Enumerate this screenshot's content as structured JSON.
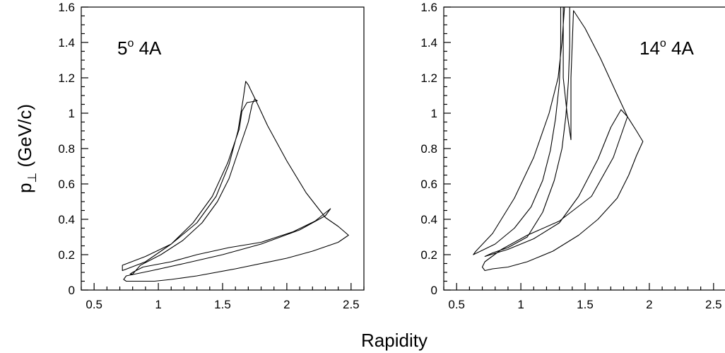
{
  "figure": {
    "ylabel_main": "p",
    "ylabel_sub": "⊥",
    "ylabel_rest": " (GeV/c)",
    "xlabel": "Rapidity"
  },
  "chart_data": [
    {
      "type": "line",
      "label_main": "5",
      "label_sup": "o",
      "label_rest": " 4A",
      "xlabel": "Rapidity",
      "ylabel": "p⊥ (GeV/c)",
      "xlim": [
        0.4,
        2.6
      ],
      "ylim": [
        0,
        1.6
      ],
      "xticks": [
        0.5,
        1,
        1.5,
        2,
        2.5
      ],
      "xtick_labels": [
        "0.5",
        "1",
        "1.5",
        "2",
        "2.5"
      ],
      "yticks": [
        0,
        0.2,
        0.4,
        0.6,
        0.8,
        1,
        1.2,
        1.4,
        1.6
      ],
      "ytick_labels": [
        "0",
        "0.2",
        "0.4",
        "0.6",
        "0.8",
        "1",
        "1.2",
        "1.4",
        "1.6"
      ],
      "grid": false,
      "series": [
        {
          "x": [
            0.72,
            0.72,
            0.9,
            1.1,
            1.3,
            1.45,
            1.55,
            1.62,
            1.66,
            1.68,
            1.7,
            1.72,
            1.76,
            1.85,
            2.0,
            2.15,
            2.3,
            2.4,
            2.48,
            2.4,
            2.2,
            2.0,
            1.6,
            1.3,
            1.1,
            0.97,
            0.92,
            0.82,
            0.75,
            0.73,
            0.75,
            0.95,
            1.2,
            1.5,
            1.8,
            2.1,
            2.3,
            2.34,
            2.22,
            2.05,
            1.8,
            1.55,
            1.3,
            1.1,
            0.88,
            0.8,
            0.78,
            0.8,
            0.86,
            1.02,
            1.19,
            1.34,
            1.46,
            1.55,
            1.62,
            1.7,
            1.73,
            1.75,
            1.77,
            1.69,
            1.65,
            1.63,
            1.54,
            1.42,
            1.27,
            1.1,
            0.9,
            0.72
          ],
          "y": [
            0.11,
            0.14,
            0.19,
            0.26,
            0.38,
            0.53,
            0.71,
            0.9,
            1.08,
            1.18,
            1.16,
            1.13,
            1.07,
            0.93,
            0.73,
            0.55,
            0.41,
            0.36,
            0.31,
            0.27,
            0.22,
            0.18,
            0.12,
            0.08,
            0.06,
            0.05,
            0.05,
            0.05,
            0.05,
            0.06,
            0.08,
            0.11,
            0.15,
            0.2,
            0.26,
            0.34,
            0.42,
            0.46,
            0.39,
            0.33,
            0.27,
            0.24,
            0.2,
            0.16,
            0.13,
            0.1,
            0.09,
            0.09,
            0.14,
            0.2,
            0.28,
            0.38,
            0.5,
            0.63,
            0.78,
            0.95,
            1.05,
            1.08,
            1.07,
            1.06,
            1.01,
            0.91,
            0.72,
            0.53,
            0.38,
            0.26,
            0.16,
            0.11
          ]
        }
      ]
    },
    {
      "type": "line",
      "label_main": "14",
      "label_sup": "o",
      "label_rest": " 4A",
      "xlabel": "Rapidity",
      "ylabel": "p⊥ (GeV/c)",
      "xlim": [
        0.4,
        2.6
      ],
      "ylim": [
        0,
        1.6
      ],
      "xticks": [
        0.5,
        1,
        1.5,
        2,
        2.5
      ],
      "xtick_labels": [
        "0.5",
        "1",
        "1.5",
        "2",
        "2.5"
      ],
      "yticks": [
        0,
        0.2,
        0.4,
        0.6,
        0.8,
        1,
        1.2,
        1.4,
        1.6
      ],
      "ytick_labels": [
        "0",
        "0.2",
        "0.4",
        "0.6",
        "0.8",
        "1",
        "1.2",
        "1.4",
        "1.6"
      ],
      "grid": false,
      "series": [
        {
          "x": [
            0.63,
            0.8,
            0.95,
            1.08,
            1.17,
            1.23,
            1.27,
            1.3,
            1.31,
            1.31,
            1.33,
            1.33,
            1.33,
            1.36,
            1.39,
            1.39,
            1.41,
            1.5,
            1.62,
            1.74,
            1.83,
            1.9,
            1.95,
            1.9,
            1.84,
            1.75,
            1.6,
            1.45,
            1.25,
            1.05,
            0.9,
            0.78,
            0.72,
            0.7,
            0.72,
            0.85,
            1.05,
            1.3,
            1.55,
            1.72,
            1.83,
            1.78,
            1.7,
            1.6,
            1.45,
            1.3,
            1.1,
            0.9,
            0.72,
            0.78,
            0.9,
            1.05,
            1.17,
            1.26,
            1.32,
            1.35,
            1.37,
            1.38,
            1.38,
            1.34,
            1.32,
            1.29,
            1.22,
            1.1,
            0.95,
            0.78,
            0.65,
            0.63
          ],
          "y": [
            0.2,
            0.26,
            0.35,
            0.47,
            0.62,
            0.79,
            0.97,
            1.17,
            1.38,
            1.6,
            1.6,
            1.4,
            1.2,
            1.0,
            0.85,
            1.2,
            1.58,
            1.48,
            1.31,
            1.12,
            0.98,
            0.9,
            0.84,
            0.76,
            0.65,
            0.52,
            0.4,
            0.31,
            0.22,
            0.16,
            0.13,
            0.12,
            0.11,
            0.13,
            0.16,
            0.23,
            0.31,
            0.39,
            0.53,
            0.75,
            0.98,
            1.02,
            0.92,
            0.74,
            0.53,
            0.38,
            0.29,
            0.23,
            0.19,
            0.21,
            0.24,
            0.3,
            0.44,
            0.62,
            0.8,
            0.98,
            1.18,
            1.38,
            1.6,
            1.6,
            1.4,
            1.2,
            1.0,
            0.75,
            0.52,
            0.32,
            0.22,
            0.2
          ]
        }
      ]
    }
  ]
}
